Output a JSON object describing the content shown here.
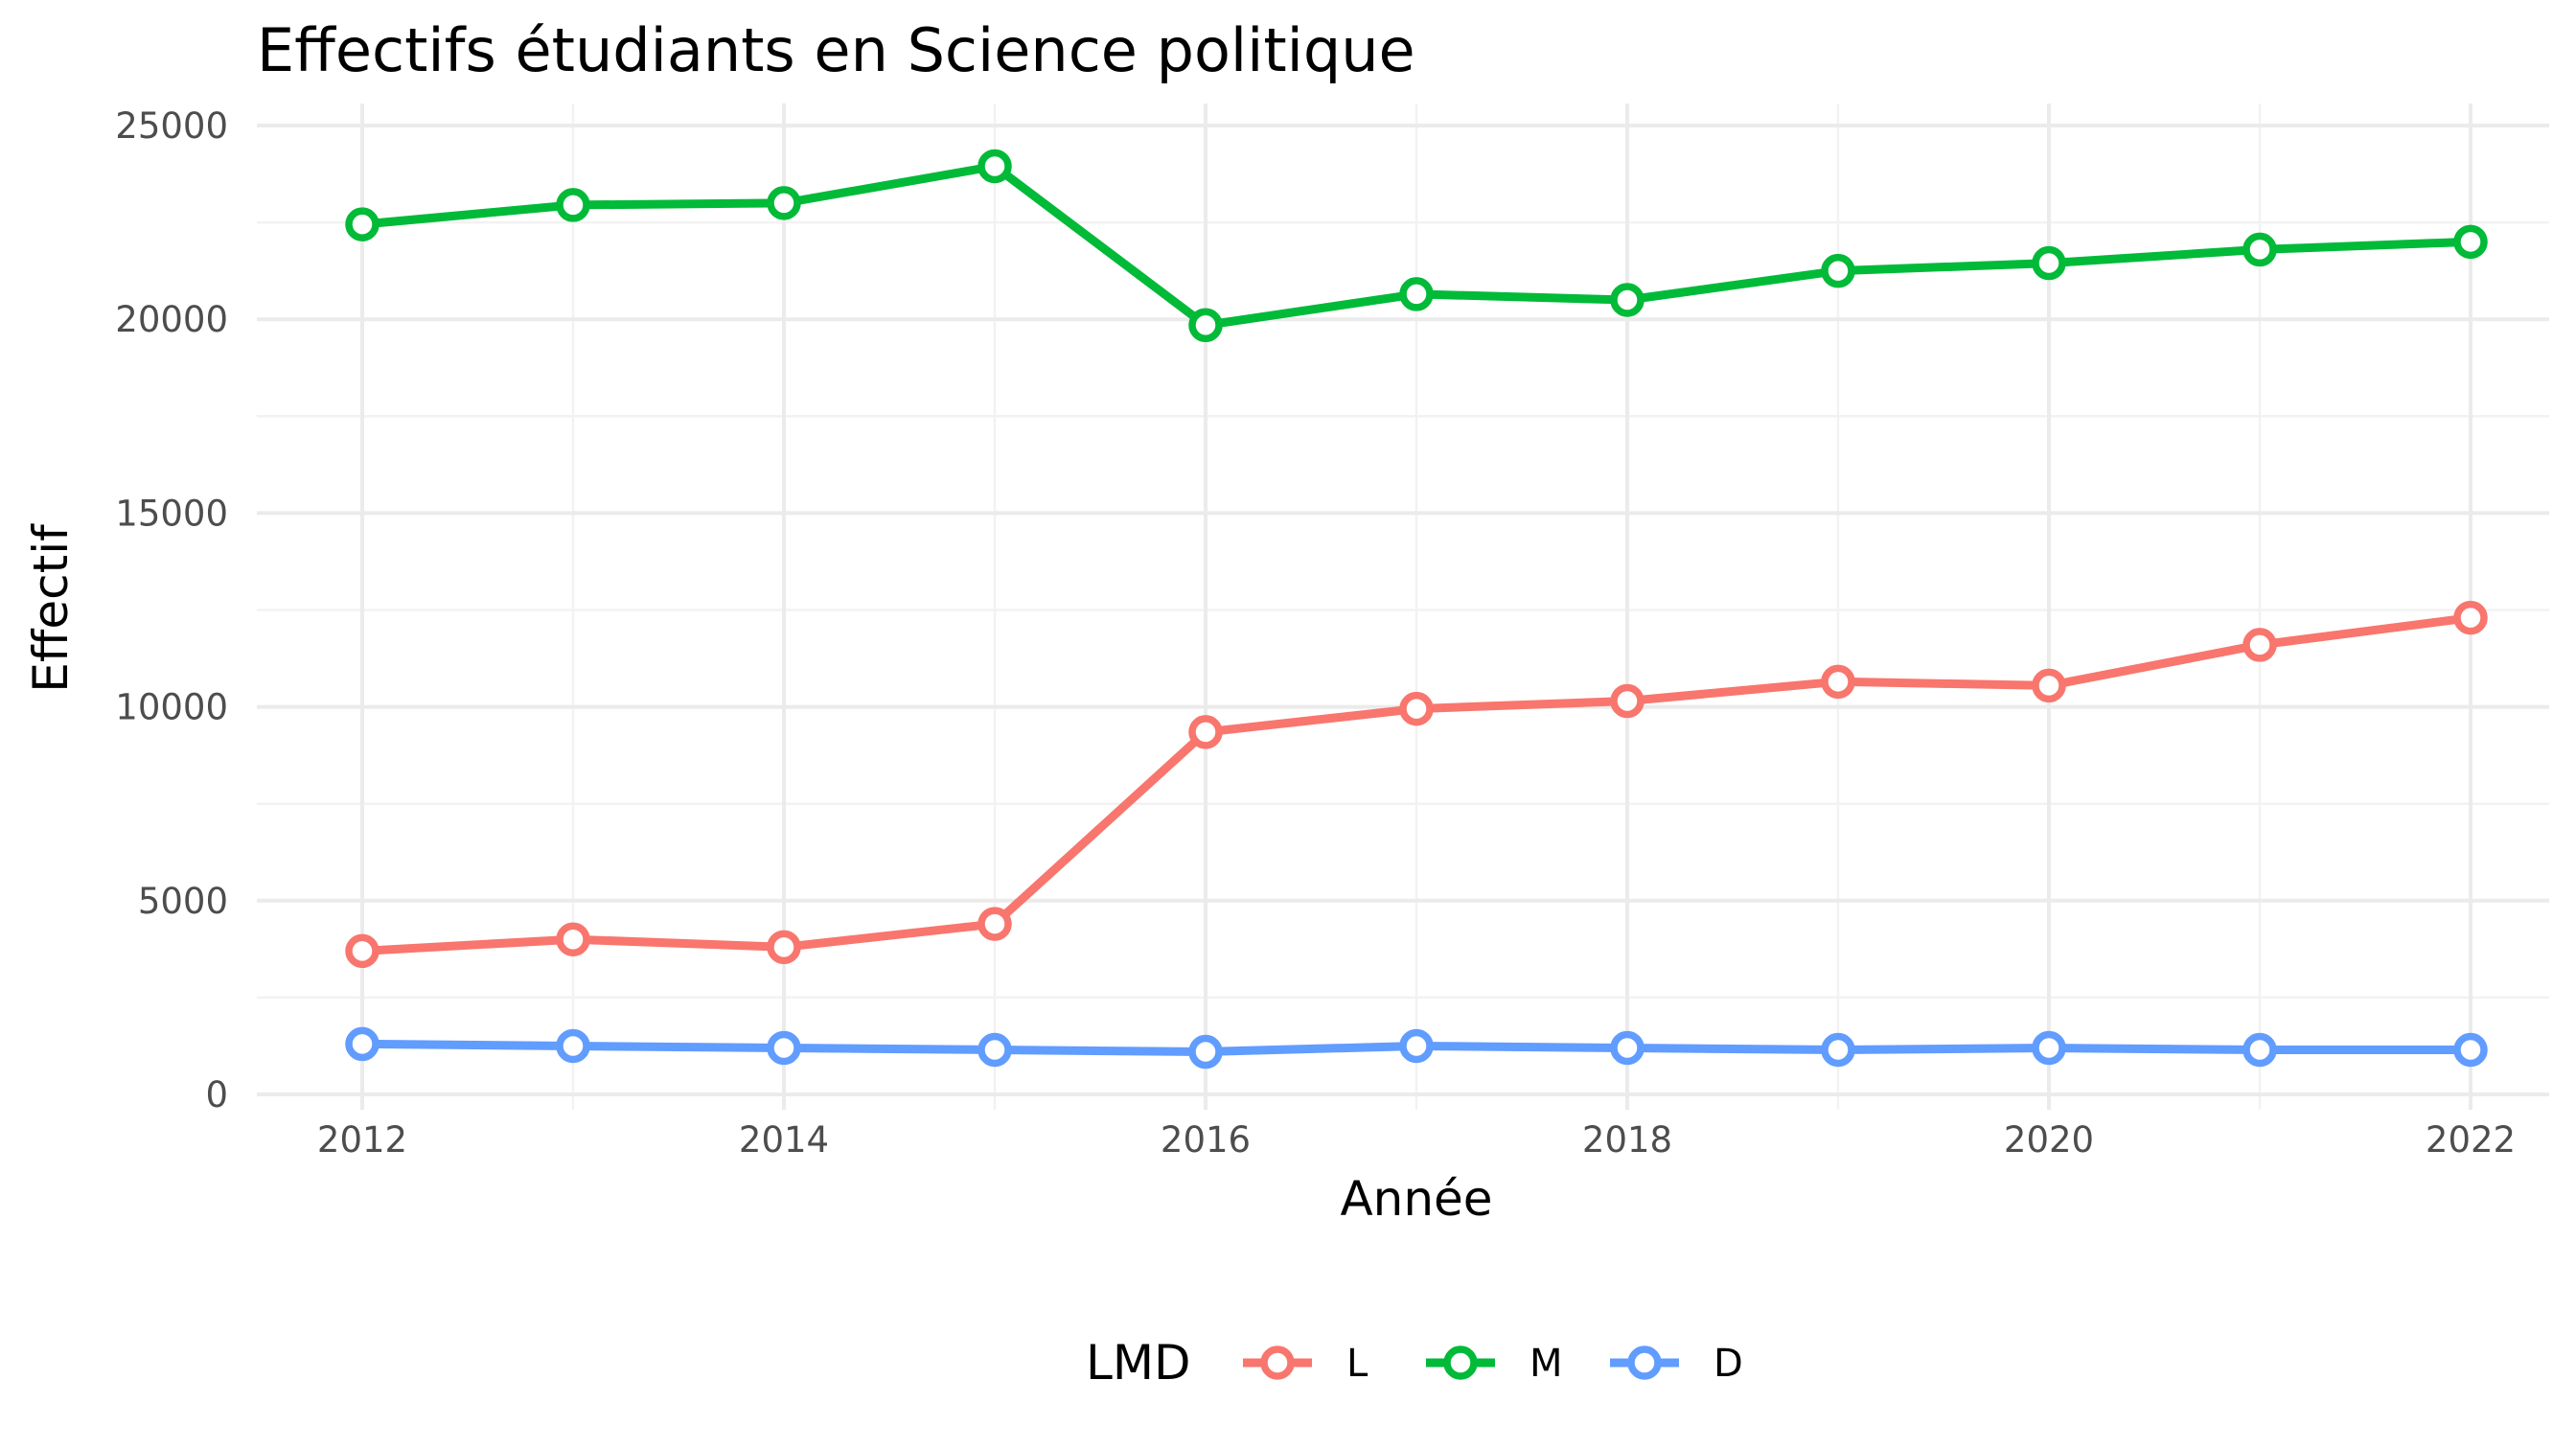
{
  "chart_data": {
    "type": "line",
    "title": "Effectifs étudiants en Science politique",
    "xlabel": "Année",
    "ylabel": "Effectif",
    "x": [
      2012,
      2013,
      2014,
      2015,
      2016,
      2017,
      2018,
      2019,
      2020,
      2021,
      2022
    ],
    "x_ticks": [
      "2012",
      "2014",
      "2016",
      "2018",
      "2020",
      "2022"
    ],
    "y_ticks": [
      "0",
      "5000",
      "10000",
      "15000",
      "20000",
      "25000"
    ],
    "xlim": [
      2011.5,
      2022.5
    ],
    "ylim": [
      0,
      25000
    ],
    "grid": true,
    "legend": {
      "title": "LMD",
      "position": "bottom"
    },
    "series": [
      {
        "name": "L",
        "color": "#f8766d",
        "values": [
          3700,
          4000,
          3800,
          4400,
          9350,
          9950,
          10150,
          10650,
          10550,
          11600,
          12300
        ]
      },
      {
        "name": "M",
        "color": "#00ba38",
        "values": [
          22450,
          22950,
          23000,
          23950,
          19850,
          20650,
          20500,
          21250,
          21450,
          21800,
          22000
        ]
      },
      {
        "name": "D",
        "color": "#619cff",
        "values": [
          1300,
          1250,
          1200,
          1150,
          1100,
          1250,
          1200,
          1150,
          1200,
          1150,
          1150
        ]
      }
    ]
  }
}
